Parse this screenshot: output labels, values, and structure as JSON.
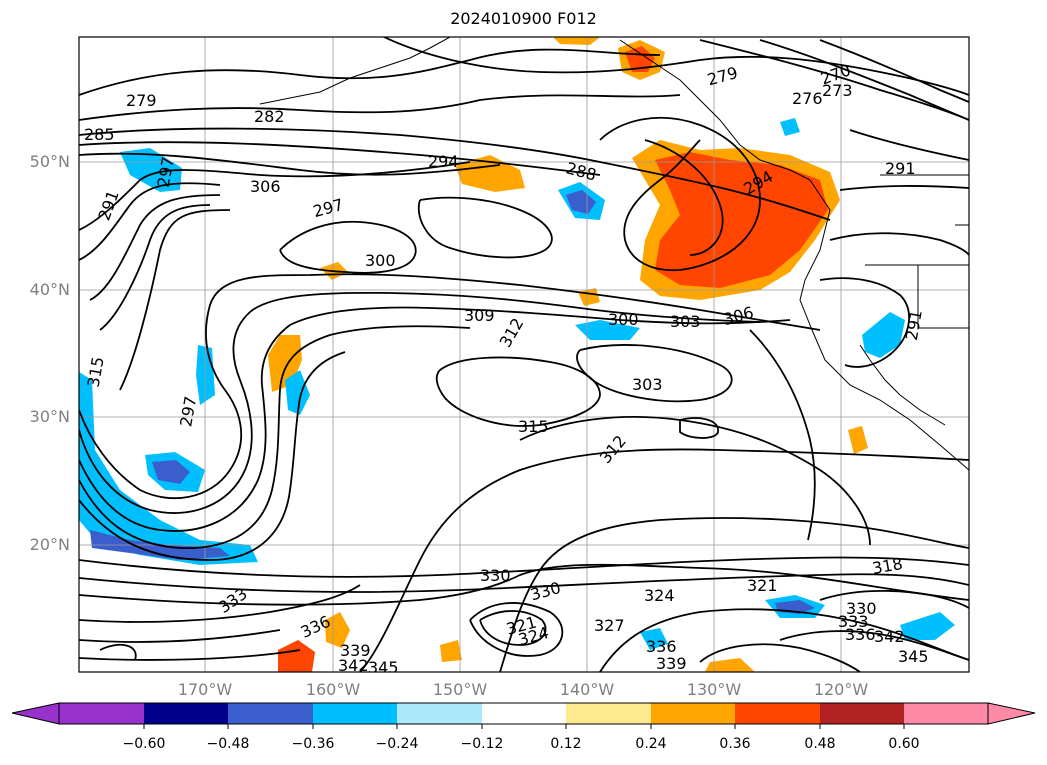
{
  "title": "2024010900 F012",
  "lat_labels": [
    "50°N",
    "40°N",
    "30°N",
    "20°N"
  ],
  "lon_labels": [
    "170°W",
    "160°W",
    "150°W",
    "140°W",
    "130°W",
    "120°W"
  ],
  "colorbar": {
    "ticks": [
      "−0.60",
      "−0.48",
      "−0.36",
      "−0.24",
      "−0.12",
      "0.12",
      "0.24",
      "0.36",
      "0.48",
      "0.60"
    ],
    "colors": [
      "#9932cc",
      "#00008b",
      "#3a5fcd",
      "#00bfff",
      "#ade8fa",
      "#ffffff",
      "#fde98e",
      "#ffa500",
      "#ff4500",
      "#b22222",
      "#ff8aa8"
    ],
    "extend": "both"
  },
  "contour_labels": [
    {
      "text": "279"
    },
    {
      "text": "282"
    },
    {
      "text": "285"
    },
    {
      "text": "291"
    },
    {
      "text": "306"
    },
    {
      "text": "297"
    },
    {
      "text": "294"
    },
    {
      "text": "288"
    },
    {
      "text": "300"
    },
    {
      "text": "279"
    },
    {
      "text": "270"
    },
    {
      "text": "273"
    },
    {
      "text": "276"
    },
    {
      "text": "294"
    },
    {
      "text": "291"
    },
    {
      "text": "309"
    },
    {
      "text": "312"
    },
    {
      "text": "300"
    },
    {
      "text": "303"
    },
    {
      "text": "306"
    },
    {
      "text": "303"
    },
    {
      "text": "297"
    },
    {
      "text": "315"
    },
    {
      "text": "312"
    },
    {
      "text": "315"
    },
    {
      "text": "318"
    },
    {
      "text": "321"
    },
    {
      "text": "324"
    },
    {
      "text": "327"
    },
    {
      "text": "330"
    },
    {
      "text": "330"
    },
    {
      "text": "321"
    },
    {
      "text": "324"
    },
    {
      "text": "333"
    },
    {
      "text": "336"
    },
    {
      "text": "339"
    },
    {
      "text": "342"
    },
    {
      "text": "345"
    },
    {
      "text": "336"
    },
    {
      "text": "339"
    },
    {
      "text": "330"
    },
    {
      "text": "333"
    },
    {
      "text": "336"
    },
    {
      "text": "342"
    },
    {
      "text": "345"
    },
    {
      "text": "291"
    },
    {
      "text": "297"
    }
  ]
}
